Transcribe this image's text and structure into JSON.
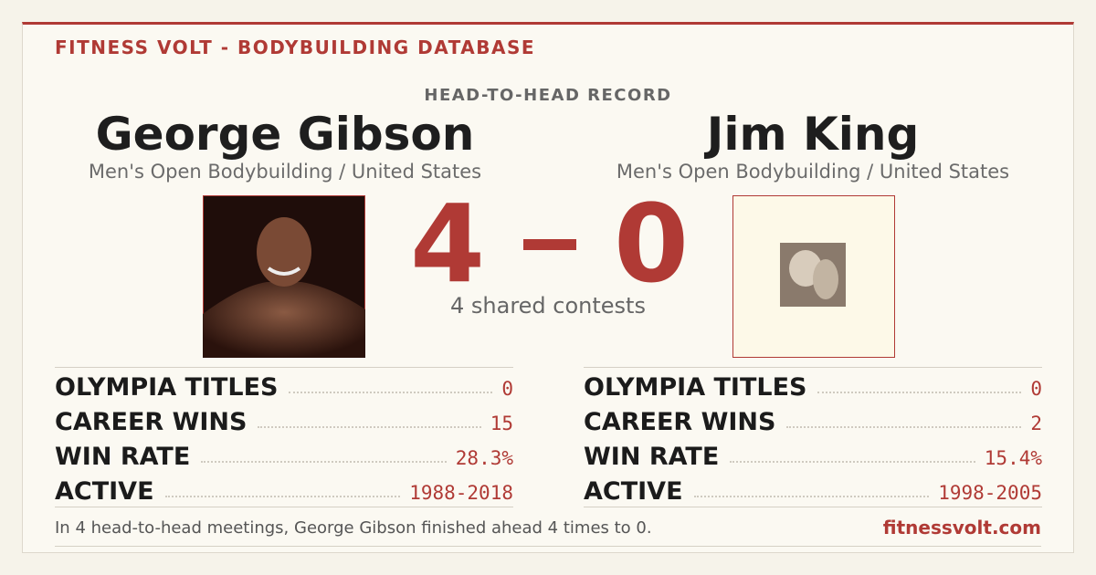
{
  "header": {
    "brand": "FITNESS VOLT - BODYBUILDING DATABASE",
    "label": "HEAD-TO-HEAD RECORD"
  },
  "athletes": [
    {
      "name": "George Gibson",
      "division": "Men's Open Bodybuilding / United States",
      "stats": [
        [
          "OLYMPIA TITLES",
          "0"
        ],
        [
          "CAREER WINS",
          "15"
        ],
        [
          "WIN RATE",
          "28.3%"
        ],
        [
          "ACTIVE",
          "1988-2018"
        ]
      ]
    },
    {
      "name": "Jim King",
      "division": "Men's Open Bodybuilding / United States",
      "stats": [
        [
          "OLYMPIA TITLES",
          "0"
        ],
        [
          "CAREER WINS",
          "2"
        ],
        [
          "WIN RATE",
          "15.4%"
        ],
        [
          "ACTIVE",
          "1998-2005"
        ]
      ]
    }
  ],
  "score": {
    "left": "4",
    "right": "0",
    "caption": "4 shared contests"
  },
  "footer": {
    "summary": "In 4 head-to-head meetings, George Gibson finished ahead 4 times to 0.",
    "site": "fitnessvolt.com"
  }
}
